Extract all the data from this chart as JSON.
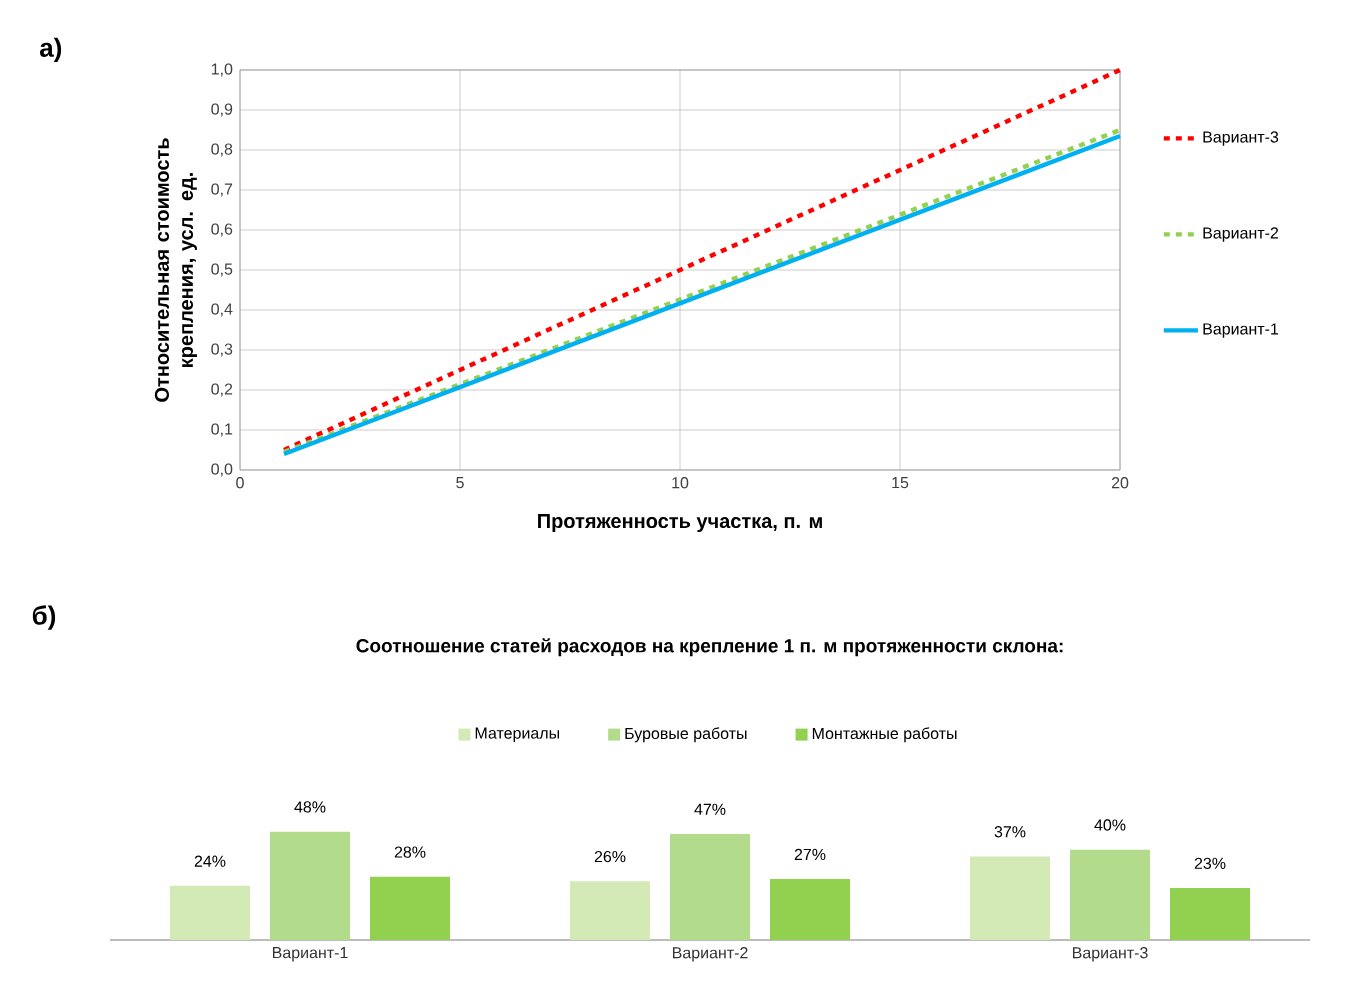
{
  "chart_data": [
    {
      "type": "line",
      "annotations": [
        "а)"
      ],
      "xlabel": "Протяженность участка, п. м",
      "ylabel": "Относительная стоимость крепления, усл. ед.",
      "xlim": [
        0,
        20
      ],
      "xticks": [
        0,
        5,
        10,
        15,
        20
      ],
      "ylim": [
        0,
        1
      ],
      "yticks": [
        {
          "value": 0,
          "label": "0,0"
        },
        {
          "value": 0.1,
          "label": "0,1"
        },
        {
          "value": 0.2,
          "label": "0,2"
        },
        {
          "value": 0.3,
          "label": "0,3"
        },
        {
          "value": 0.4,
          "label": "0,4"
        },
        {
          "value": 0.5,
          "label": "0,5"
        },
        {
          "value": 0.6,
          "label": "0,6"
        },
        {
          "value": 0.7,
          "label": "0,7"
        },
        {
          "value": 0.8,
          "label": "0,8"
        },
        {
          "value": 0.9,
          "label": "0,9"
        },
        {
          "value": 1.0,
          "label": "1,0"
        }
      ],
      "x": [
        1,
        20
      ],
      "grid": true,
      "legend": "right",
      "series": [
        {
          "name": "Вариант-3",
          "color": "#ff0000",
          "line_style": "dashed",
          "values": [
            0.05,
            1.0
          ]
        },
        {
          "name": "Вариант-2",
          "color": "#92d050",
          "line_style": "dashed",
          "values": [
            0.045,
            0.85
          ]
        },
        {
          "name": "Вариант-1",
          "color": "#00b0f0",
          "line_style": "solid",
          "values": [
            0.04,
            0.835
          ]
        }
      ]
    },
    {
      "type": "bar",
      "annotations": [
        "б)"
      ],
      "title": "Соотношение статей расходов на крепление 1 п. м протяженности склона:",
      "categories": [
        "Вариант-1",
        "Вариант-2",
        "Вариант-3"
      ],
      "legend": "top",
      "series": [
        {
          "name": "Материалы",
          "color": "#d3e9b6",
          "values": [
            24,
            26,
            37
          ],
          "value_labels": [
            "24%",
            "26%",
            "37%"
          ]
        },
        {
          "name": "Буровые работы",
          "color": "#b3db8c",
          "values": [
            48,
            47,
            40
          ],
          "value_labels": [
            "48%",
            "47%",
            "40%"
          ]
        },
        {
          "name": "Монтажные работы",
          "color": "#92d050",
          "values": [
            28,
            27,
            23
          ],
          "value_labels": [
            "28%",
            "27%",
            "23%"
          ]
        }
      ]
    }
  ]
}
